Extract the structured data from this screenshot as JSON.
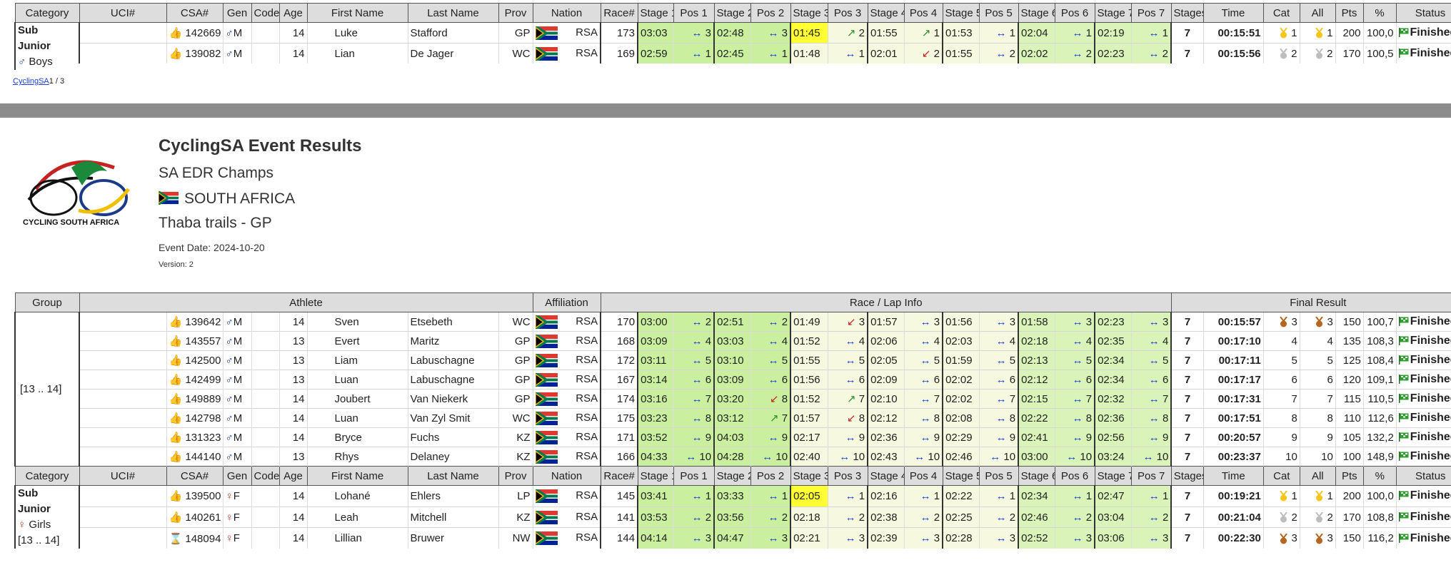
{
  "page1": {
    "headers": [
      "Category",
      "UCI#",
      "CSA#",
      "Gen",
      "Code",
      "Age",
      "First Name",
      "Last Name",
      "Prov",
      "Nation",
      "Race#",
      "Stage 1",
      "Pos 1",
      "Stage 2",
      "Pos 2",
      "Stage 3",
      "Pos 3",
      "Stage 4",
      "Pos 4",
      "Stage 5",
      "Pos 5",
      "Stage 6",
      "Pos 6",
      "Stage 7",
      "Pos 7",
      "Stages",
      "Time",
      "Cat",
      "All",
      "Pts",
      "%",
      "Status"
    ],
    "category": {
      "line1": "Sub",
      "line2": "Junior",
      "line3": "Boys"
    },
    "rows": [
      {
        "csa": "142669",
        "gen": "M",
        "age": "14",
        "first": "Luke",
        "last": "Stafford",
        "prov": "GP",
        "nation": "RSA",
        "race": "173",
        "s": [
          "03:03",
          "02:48",
          "01:45",
          "01:55",
          "01:53",
          "02:04",
          "02:19"
        ],
        "p": [
          "3",
          "3",
          "2",
          "1",
          "1",
          "1",
          "1"
        ],
        "stages": "7",
        "time": "00:15:51",
        "cat": "1",
        "all": "1",
        "pts": "200",
        "pct": "100,0",
        "status": "Finished"
      },
      {
        "csa": "139082",
        "gen": "M",
        "age": "14",
        "first": "Lian",
        "last": "De Jager",
        "prov": "WC",
        "nation": "RSA",
        "race": "169",
        "s": [
          "02:59",
          "02:45",
          "01:48",
          "02:01",
          "01:55",
          "02:02",
          "02:23"
        ],
        "p": [
          "1",
          "1",
          "1",
          "2",
          "2",
          "2",
          "2"
        ],
        "stages": "7",
        "time": "00:15:56",
        "cat": "2",
        "all": "2",
        "pts": "170",
        "pct": "100,5",
        "status": "Finished"
      }
    ],
    "footer_link": "CyclingSA",
    "footer_page": "1 / 3"
  },
  "page2": {
    "title": "CyclingSA Event Results",
    "event": "SA EDR Champs",
    "country": "SOUTH AFRICA",
    "venue": "Thaba trails - GP",
    "date": "Event Date: 2024-10-20",
    "version": "Version: 2",
    "logo_text": "CYCLING SOUTH AFRICA",
    "group_headers": {
      "group": "Group",
      "athlete": "Athlete",
      "affiliation": "Affiliation",
      "race": "Race / Lap Info",
      "final": "Final Result"
    },
    "group_label": "[13 .. 14]",
    "rows": [
      {
        "csa": "139642",
        "gen": "M",
        "age": "14",
        "first": "Sven",
        "last": "Etsebeth",
        "prov": "WC",
        "nation": "RSA",
        "race": "170",
        "s": [
          "03:00",
          "02:51",
          "01:49",
          "01:57",
          "01:56",
          "01:58",
          "02:23"
        ],
        "p": [
          "2",
          "2",
          "3",
          "3",
          "3",
          "3",
          "3"
        ],
        "stages": "7",
        "time": "00:15:57",
        "cat": "3",
        "all": "3",
        "pts": "150",
        "pct": "100,7",
        "status": "Finished"
      },
      {
        "csa": "143557",
        "gen": "M",
        "age": "13",
        "first": "Evert",
        "last": "Maritz",
        "prov": "GP",
        "nation": "RSA",
        "race": "168",
        "s": [
          "03:09",
          "03:03",
          "01:52",
          "02:06",
          "02:03",
          "02:18",
          "02:35"
        ],
        "p": [
          "4",
          "4",
          "4",
          "4",
          "4",
          "4",
          "4"
        ],
        "stages": "7",
        "time": "00:17:10",
        "cat": "4",
        "all": "4",
        "pts": "135",
        "pct": "108,3",
        "status": "Finished"
      },
      {
        "csa": "142500",
        "gen": "M",
        "age": "13",
        "first": "Liam",
        "last": "Labuschagne",
        "prov": "GP",
        "nation": "RSA",
        "race": "172",
        "s": [
          "03:11",
          "03:10",
          "01:55",
          "02:05",
          "01:59",
          "02:13",
          "02:34"
        ],
        "p": [
          "5",
          "5",
          "5",
          "5",
          "5",
          "5",
          "5"
        ],
        "stages": "7",
        "time": "00:17:11",
        "cat": "5",
        "all": "5",
        "pts": "125",
        "pct": "108,4",
        "status": "Finished"
      },
      {
        "csa": "142499",
        "gen": "M",
        "age": "13",
        "first": "Luan",
        "last": "Labuschagne",
        "prov": "GP",
        "nation": "RSA",
        "race": "167",
        "s": [
          "03:14",
          "03:09",
          "01:56",
          "02:09",
          "02:02",
          "02:12",
          "02:34"
        ],
        "p": [
          "6",
          "6",
          "6",
          "6",
          "6",
          "6",
          "6"
        ],
        "stages": "7",
        "time": "00:17:17",
        "cat": "6",
        "all": "6",
        "pts": "120",
        "pct": "109,1",
        "status": "Finished"
      },
      {
        "csa": "149889",
        "gen": "M",
        "age": "14",
        "first": "Joubert",
        "last": "Van Niekerk",
        "prov": "GP",
        "nation": "RSA",
        "race": "174",
        "s": [
          "03:16",
          "03:20",
          "01:52",
          "02:10",
          "02:02",
          "02:15",
          "02:32"
        ],
        "p": [
          "7",
          "8",
          "7",
          "7",
          "7",
          "7",
          "7"
        ],
        "stages": "7",
        "time": "00:17:31",
        "cat": "7",
        "all": "7",
        "pts": "115",
        "pct": "110,5",
        "status": "Finished"
      },
      {
        "csa": "142798",
        "gen": "M",
        "age": "14",
        "first": "Luan",
        "last": "Van Zyl Smit",
        "prov": "WC",
        "nation": "RSA",
        "race": "175",
        "s": [
          "03:23",
          "03:12",
          "01:57",
          "02:12",
          "02:08",
          "02:22",
          "02:36"
        ],
        "p": [
          "8",
          "7",
          "8",
          "8",
          "8",
          "8",
          "8"
        ],
        "stages": "7",
        "time": "00:17:51",
        "cat": "8",
        "all": "8",
        "pts": "110",
        "pct": "112,6",
        "status": "Finished"
      },
      {
        "csa": "131323",
        "gen": "M",
        "age": "14",
        "first": "Bryce",
        "last": "Fuchs",
        "prov": "KZ",
        "nation": "RSA",
        "race": "171",
        "s": [
          "03:52",
          "04:03",
          "02:17",
          "02:36",
          "02:29",
          "02:41",
          "02:56"
        ],
        "p": [
          "9",
          "9",
          "9",
          "9",
          "9",
          "9",
          "9"
        ],
        "stages": "7",
        "time": "00:20:57",
        "cat": "9",
        "all": "9",
        "pts": "105",
        "pct": "132,2",
        "status": "Finished"
      },
      {
        "csa": "144140",
        "gen": "M",
        "age": "13",
        "first": "Rhys",
        "last": "Delaney",
        "prov": "KZ",
        "nation": "RSA",
        "race": "166",
        "s": [
          "04:33",
          "04:28",
          "02:40",
          "02:43",
          "02:46",
          "03:00",
          "03:24"
        ],
        "p": [
          "10",
          "10",
          "10",
          "10",
          "10",
          "10",
          "10"
        ],
        "stages": "7",
        "time": "00:23:37",
        "cat": "10",
        "all": "10",
        "pts": "100",
        "pct": "148,9",
        "status": "Finished"
      }
    ],
    "girls_category": {
      "line1": "Sub",
      "line2": "Junior",
      "line3": "Girls",
      "line4": "[13 .. 14]"
    },
    "girls": [
      {
        "csa": "139500",
        "gen": "F",
        "age": "14",
        "first": "Lohané",
        "last": "Ehlers",
        "prov": "LP",
        "nation": "RSA",
        "race": "145",
        "s": [
          "03:41",
          "03:33",
          "02:05",
          "02:16",
          "02:22",
          "02:34",
          "02:47"
        ],
        "p": [
          "1",
          "1",
          "1",
          "1",
          "1",
          "1",
          "1"
        ],
        "stages": "7",
        "time": "00:19:21",
        "cat": "1",
        "all": "1",
        "pts": "200",
        "pct": "100,0",
        "status": "Finished"
      },
      {
        "csa": "140261",
        "gen": "F",
        "age": "14",
        "first": "Leah",
        "last": "Mitchell",
        "prov": "KZ",
        "nation": "RSA",
        "race": "141",
        "s": [
          "03:53",
          "03:56",
          "02:18",
          "02:38",
          "02:25",
          "02:46",
          "03:04"
        ],
        "p": [
          "2",
          "2",
          "2",
          "2",
          "2",
          "2",
          "2"
        ],
        "stages": "7",
        "time": "00:21:04",
        "cat": "2",
        "all": "2",
        "pts": "170",
        "pct": "108,8",
        "status": "Finished"
      },
      {
        "csa": "148094",
        "gen": "F",
        "age": "14",
        "first": "Lillian",
        "last": "Bruwer",
        "prov": "NW",
        "nation": "RSA",
        "race": "144",
        "s": [
          "04:14",
          "04:47",
          "02:21",
          "02:39",
          "02:28",
          "02:52",
          "03:06"
        ],
        "p": [
          "3",
          "3",
          "3",
          "3",
          "3",
          "3",
          "3"
        ],
        "stages": "7",
        "time": "00:22:30",
        "cat": "3",
        "all": "3",
        "pts": "150",
        "pct": "116,2",
        "status": "Finished"
      }
    ]
  }
}
